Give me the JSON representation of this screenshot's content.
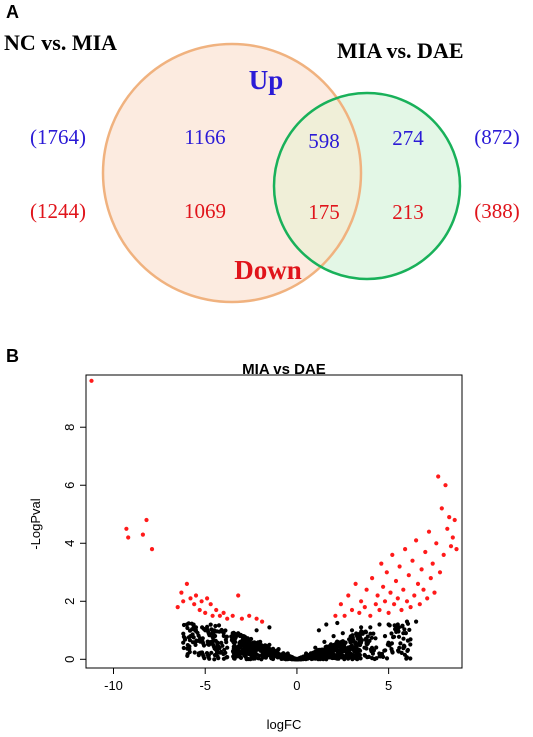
{
  "panel_a": {
    "letter": "A",
    "set_left_title": "NC vs. MIA",
    "set_right_title": "MIA vs. DAE",
    "up_label": "Up",
    "down_label": "Down",
    "left_up_total": "(1764)",
    "left_down_total": "(1244)",
    "right_up_total": "(872)",
    "right_down_total": "(388)",
    "left_only_up": "1166",
    "left_only_down": "1069",
    "overlap_up": "598",
    "overlap_down": "175",
    "right_only_up": "274",
    "right_only_down": "213",
    "colors": {
      "up": "#2b1bd6",
      "down": "#e0141b",
      "left_fill": "#fcebe0",
      "left_stroke": "#f0b27f",
      "right_fill": "#e3f7e6",
      "right_stroke": "#19b15a",
      "overlap_fill": "#f0efd8"
    }
  },
  "panel_b": {
    "letter": "B",
    "colors": {
      "significant": "#ff1a1a",
      "nonsignificant": "#000000"
    }
  },
  "chart_data": {
    "type": "scatter",
    "title": "MIA vs DAE",
    "xlabel": "logFC",
    "ylabel": "-LogPval",
    "xlim": [
      -11.5,
      9
    ],
    "ylim": [
      -0.3,
      9.8
    ],
    "x_ticks": [
      -10,
      -5,
      0,
      5
    ],
    "y_ticks": [
      0,
      2,
      4,
      6,
      8
    ],
    "series": [
      {
        "color": "#ff1a1a",
        "points": [
          [
            -11.2,
            9.6
          ],
          [
            -9.3,
            4.5
          ],
          [
            -9.2,
            4.2
          ],
          [
            -8.2,
            4.8
          ],
          [
            -8.4,
            4.3
          ],
          [
            -7.9,
            3.8
          ],
          [
            -6.5,
            1.8
          ],
          [
            -6.3,
            2.3
          ],
          [
            -6.2,
            2.0
          ],
          [
            -6.0,
            2.6
          ],
          [
            -5.8,
            2.1
          ],
          [
            -5.6,
            1.9
          ],
          [
            -5.5,
            2.2
          ],
          [
            -5.3,
            1.7
          ],
          [
            -5.2,
            2.0
          ],
          [
            -5.0,
            1.6
          ],
          [
            -4.9,
            2.1
          ],
          [
            -4.7,
            1.9
          ],
          [
            -4.6,
            1.5
          ],
          [
            -4.4,
            1.7
          ],
          [
            -4.2,
            1.5
          ],
          [
            -4.0,
            1.6
          ],
          [
            -3.8,
            1.4
          ],
          [
            -3.5,
            1.5
          ],
          [
            -3.2,
            2.2
          ],
          [
            -3.0,
            1.4
          ],
          [
            -2.6,
            1.5
          ],
          [
            -2.2,
            1.4
          ],
          [
            -1.9,
            1.3
          ],
          [
            2.1,
            1.5
          ],
          [
            2.4,
            1.9
          ],
          [
            2.6,
            1.5
          ],
          [
            2.8,
            2.2
          ],
          [
            3.0,
            1.7
          ],
          [
            3.2,
            2.6
          ],
          [
            3.4,
            1.6
          ],
          [
            3.5,
            2.0
          ],
          [
            3.7,
            1.8
          ],
          [
            3.8,
            2.4
          ],
          [
            4.0,
            1.5
          ],
          [
            4.1,
            2.8
          ],
          [
            4.3,
            1.9
          ],
          [
            4.4,
            2.2
          ],
          [
            4.5,
            1.7
          ],
          [
            4.6,
            3.3
          ],
          [
            4.7,
            2.5
          ],
          [
            4.8,
            2.0
          ],
          [
            4.9,
            3.0
          ],
          [
            5.0,
            1.6
          ],
          [
            5.1,
            2.3
          ],
          [
            5.2,
            3.6
          ],
          [
            5.3,
            1.9
          ],
          [
            5.4,
            2.7
          ],
          [
            5.5,
            2.1
          ],
          [
            5.6,
            3.2
          ],
          [
            5.7,
            1.7
          ],
          [
            5.8,
            2.4
          ],
          [
            5.9,
            3.8
          ],
          [
            6.0,
            2.0
          ],
          [
            6.1,
            2.9
          ],
          [
            6.2,
            1.8
          ],
          [
            6.3,
            3.4
          ],
          [
            6.4,
            2.2
          ],
          [
            6.5,
            4.1
          ],
          [
            6.6,
            2.6
          ],
          [
            6.7,
            1.9
          ],
          [
            6.8,
            3.1
          ],
          [
            6.9,
            2.4
          ],
          [
            7.0,
            3.7
          ],
          [
            7.1,
            2.1
          ],
          [
            7.2,
            4.4
          ],
          [
            7.3,
            2.8
          ],
          [
            7.4,
            3.3
          ],
          [
            7.5,
            2.3
          ],
          [
            7.6,
            4.0
          ],
          [
            7.7,
            6.3
          ],
          [
            7.8,
            3.0
          ],
          [
            7.9,
            5.2
          ],
          [
            8.0,
            3.6
          ],
          [
            8.1,
            6.0
          ],
          [
            8.2,
            4.5
          ],
          [
            8.3,
            4.9
          ],
          [
            8.4,
            3.9
          ],
          [
            8.5,
            4.2
          ],
          [
            8.6,
            4.8
          ],
          [
            8.7,
            3.8
          ]
        ]
      },
      {
        "color": "#000000",
        "points": [
          [
            -6.0,
            1.2
          ],
          [
            -5.5,
            1.1
          ],
          [
            -5.0,
            1.0
          ],
          [
            -4.5,
            1.0
          ],
          [
            -4.0,
            0.9
          ],
          [
            -3.5,
            0.9
          ],
          [
            -3.0,
            0.8
          ],
          [
            -2.5,
            0.7
          ],
          [
            -2.0,
            0.6
          ],
          [
            -1.5,
            0.5
          ],
          [
            -1.0,
            0.35
          ],
          [
            -0.5,
            0.2
          ],
          [
            0.0,
            0.0
          ],
          [
            0.5,
            0.2
          ],
          [
            1.0,
            0.4
          ],
          [
            1.5,
            0.6
          ],
          [
            2.0,
            0.8
          ],
          [
            2.5,
            0.9
          ],
          [
            3.0,
            1.0
          ],
          [
            3.5,
            1.1
          ],
          [
            4.0,
            1.1
          ],
          [
            4.5,
            1.2
          ],
          [
            5.0,
            1.2
          ],
          [
            5.5,
            1.2
          ],
          [
            6.0,
            1.3
          ],
          [
            6.5,
            1.3
          ],
          [
            -5.8,
            0.8
          ],
          [
            -4.8,
            0.5
          ],
          [
            -3.8,
            0.4
          ],
          [
            -2.8,
            0.3
          ],
          [
            -1.8,
            0.25
          ],
          [
            -0.8,
            0.1
          ],
          [
            0.8,
            0.1
          ],
          [
            1.8,
            0.3
          ],
          [
            2.8,
            0.4
          ],
          [
            3.8,
            0.6
          ],
          [
            4.8,
            0.8
          ],
          [
            5.8,
            0.9
          ],
          [
            -1.5,
            1.1
          ],
          [
            -2.2,
            1.0
          ],
          [
            1.2,
            1.0
          ],
          [
            1.6,
            1.2
          ],
          [
            2.2,
            1.25
          ]
        ]
      }
    ]
  }
}
